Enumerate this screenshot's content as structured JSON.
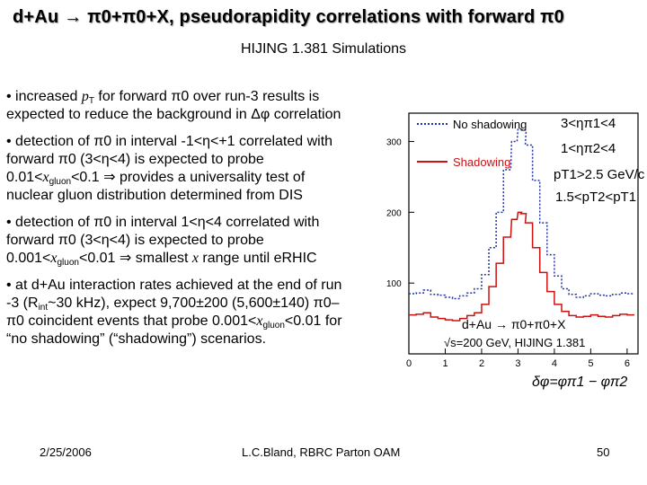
{
  "slide": {
    "title": "d+Au → π0+π0+X, pseudorapidity correlations with forward π0",
    "subtitle": "HIJING 1.381 Simulations",
    "footer": {
      "date": "2/25/2006",
      "author": "L.C.Bland, RBRC Parton OAM",
      "page": "50"
    }
  },
  "bullets": [
    {
      "line1_pre": "• increased ",
      "line1_math": "p",
      "line1_sub": "T",
      "line1_post": " for forward π0 over run-3 results is",
      "line2": "expected to reduce the background in Δφ correlation"
    },
    {
      "l1": "• detection of π0 in interval -1<η<+1 correlated with",
      "l2": "forward π0 (3<η<4) is expected to probe",
      "l3_pre": "0.01<",
      "l3_math": "x",
      "l3_sub": "gluon",
      "l3_post": "<0.1 ⇒ provides a universality test of",
      "l4": "nuclear gluon distribution determined from DIS"
    },
    {
      "l1": "• detection of π0 in interval 1<η<4 correlated with",
      "l2": "forward π0 (3<η<4) is expected to probe",
      "l3_pre": "0.001<",
      "l3_math": "x",
      "l3_sub": "gluon",
      "l3_mid": "<0.01 ⇒ smallest ",
      "l3_math2": "x",
      "l3_post": " range until eRHIC"
    },
    {
      "l1": "• at d+Au interaction rates achieved at the end of run",
      "l2_pre": "-3 (R",
      "l2_sub": "int",
      "l2_post": "~30 kHz), expect 9,700±200 (5,600±140) π0–",
      "l3_pre": "π0 coincident events that probe 0.001<",
      "l3_math": "x",
      "l3_sub": "gluon",
      "l3_post": "<0.01 for",
      "l4": "“no shadowing” (“shadowing”) scenarios."
    }
  ],
  "chart_data": {
    "type": "line",
    "xlabel": "δφ=φπ1 − φπ2",
    "xlim": [
      0,
      6.3
    ],
    "ylim": [
      0,
      340
    ],
    "x_ticks": [
      "0",
      "1",
      "2",
      "3",
      "4",
      "5",
      "6"
    ],
    "y_ticks": [
      "100",
      "200",
      "300"
    ],
    "x": [
      0.1,
      0.3,
      0.5,
      0.7,
      0.9,
      1.1,
      1.3,
      1.5,
      1.7,
      1.9,
      2.1,
      2.3,
      2.5,
      2.7,
      2.9,
      3.05,
      3.15,
      3.3,
      3.5,
      3.7,
      3.9,
      4.1,
      4.3,
      4.5,
      4.7,
      4.9,
      5.1,
      5.3,
      5.5,
      5.7,
      5.9,
      6.1
    ],
    "series": [
      {
        "name": "No shadowing",
        "color": "#2233aa",
        "style": "dotted",
        "values": [
          85,
          86,
          90,
          84,
          83,
          80,
          78,
          82,
          86,
          92,
          112,
          150,
          200,
          260,
          300,
          318,
          316,
          295,
          245,
          185,
          140,
          110,
          92,
          84,
          80,
          82,
          85,
          83,
          82,
          84,
          86,
          85
        ]
      },
      {
        "name": "Shadowing",
        "color": "#cc1111",
        "style": "solid",
        "values": [
          55,
          56,
          58,
          52,
          50,
          48,
          47,
          50,
          54,
          58,
          70,
          95,
          128,
          165,
          190,
          200,
          198,
          185,
          150,
          115,
          88,
          70,
          60,
          54,
          52,
          53,
          55,
          53,
          52,
          54,
          56,
          55
        ]
      }
    ],
    "annotations": {
      "eta1": "3<ηπ1<4",
      "eta2": "1<ηπ2<4",
      "pt1": "pT1>2.5 GeV/c",
      "pt2": "1.5<pT2<pT1",
      "reaction": "d+Au → π0+π0+X",
      "energy": "√s=200 GeV, HIJING 1.381"
    }
  }
}
